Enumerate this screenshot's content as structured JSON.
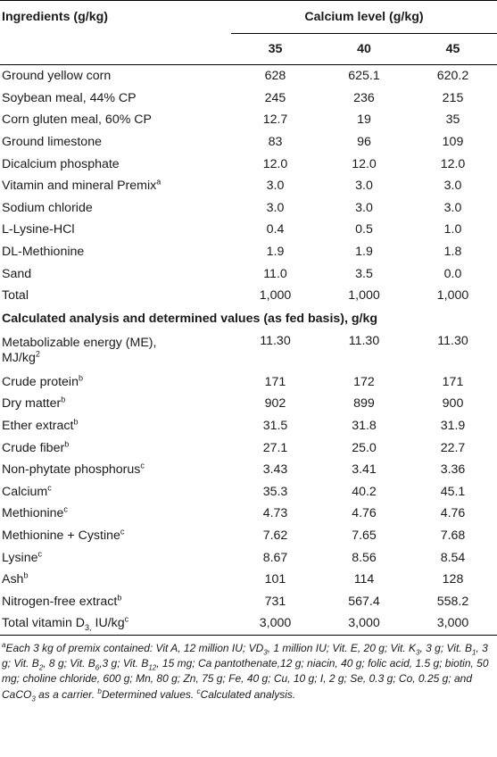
{
  "header": {
    "ingredients_label": "Ingredients (g/kg)",
    "calcium_label": "Calcium level (g/kg)",
    "levels": [
      "35",
      "40",
      "45"
    ]
  },
  "ingredients": [
    {
      "name": "Ground yellow corn",
      "sup": "",
      "v": [
        "628",
        "625.1",
        "620.2"
      ]
    },
    {
      "name": "Soybean meal, 44% CP",
      "sup": "",
      "v": [
        "245",
        "236",
        "215"
      ]
    },
    {
      "name": "Corn gluten meal, 60% CP",
      "sup": "",
      "v": [
        "12.7",
        "19",
        "35"
      ]
    },
    {
      "name": "Ground limestone",
      "sup": "",
      "v": [
        "83",
        "96",
        "109"
      ]
    },
    {
      "name": "Dicalcium phosphate",
      "sup": "",
      "v": [
        "12.0",
        "12.0",
        "12.0"
      ]
    },
    {
      "name": "Vitamin and mineral Premix",
      "sup": "a",
      "v": [
        "3.0",
        "3.0",
        "3.0"
      ]
    },
    {
      "name": "Sodium chloride",
      "sup": "",
      "v": [
        "3.0",
        "3.0",
        "3.0"
      ]
    },
    {
      "name": "L-Lysine-HCl",
      "sup": "",
      "v": [
        "0.4",
        "0.5",
        "1.0"
      ]
    },
    {
      "name": "DL-Methionine",
      "sup": "",
      "v": [
        "1.9",
        "1.9",
        "1.8"
      ]
    },
    {
      "name": "Sand",
      "sup": "",
      "v": [
        "11.0",
        "3.5",
        "0.0"
      ]
    },
    {
      "name": "Total",
      "sup": "",
      "v": [
        "1,000",
        "1,000",
        "1,000"
      ]
    }
  ],
  "analysis_title": "Calculated analysis and determined values (as fed basis), g/kg",
  "me_row": {
    "line1": "Metabolizable energy (ME),",
    "line2": "MJ/kg",
    "sup": "2",
    "v": [
      "11.30",
      "11.30",
      "11.30"
    ]
  },
  "analysis": [
    {
      "name": "Crude protein",
      "sup": "b",
      "v": [
        "171",
        "172",
        "171"
      ]
    },
    {
      "name": "Dry matter",
      "sup": "b",
      "v": [
        "902",
        "899",
        "900"
      ]
    },
    {
      "name": "Ether extract",
      "sup": "b",
      "v": [
        "31.5",
        "31.8",
        "31.9"
      ]
    },
    {
      "name": "Crude fiber",
      "sup": "b",
      "v": [
        "27.1",
        "25.0",
        "22.7"
      ]
    },
    {
      "name": "Non-phytate phosphorus",
      "sup": "c",
      "v": [
        "3.43",
        "3.41",
        "3.36"
      ]
    },
    {
      "name": "Calcium",
      "sup": "c",
      "v": [
        "35.3",
        "40.2",
        "45.1"
      ]
    },
    {
      "name": "Methionine",
      "sup": "c",
      "v": [
        "4.73",
        "4.76",
        "4.76"
      ]
    },
    {
      "name": "Methionine + Cystine",
      "sup": "c",
      "v": [
        "7.62",
        "7.65",
        "7.68"
      ]
    },
    {
      "name": "Lysine",
      "sup": "c",
      "v": [
        "8.67",
        "8.56",
        "8.54"
      ]
    },
    {
      "name": "Ash",
      "sup": "b",
      "v": [
        "101",
        "114",
        "128"
      ]
    },
    {
      "name": "Nitrogen-free extract",
      "sup": "b",
      "v": [
        "731",
        "567.4",
        "558.2"
      ]
    },
    {
      "name": "Total vitamin D",
      "sub": "3,",
      "unit": " IU/kg",
      "sup": "c",
      "v": [
        "3,000",
        "3,000",
        "3,000"
      ]
    }
  ],
  "footnote": {
    "a_mark": "a",
    "a_text_1": "Each 3 kg of premix contained: Vit A, 12 million IU; VD",
    "a_sub_1": "3",
    "a_text_2": ", 1 million IU; Vit. E, 20 g; Vit. K",
    "a_sub_2": "3",
    "a_text_3": ", 3 g; Vit. B",
    "a_sub_3": "1",
    "a_text_4": ", 3 g; Vit. B",
    "a_sub_4": "2",
    "a_text_5": ", 8 g; Vit. B",
    "a_sub_5": "6",
    "a_text_6": ",3 g; Vit. B",
    "a_sub_6": "12",
    "a_text_7": ", 15 mg; Ca pantothenate,12 g; niacin, 40 g; folic acid, 1.5 g; biotin, 50 mg; choline chloride, 600 g; Mn, 80 g; Zn, 75 g; Fe, 40 g; Cu, 10 g; I, 2 g; Se, 0.3 g; Co, 0.25 g; and CaCO",
    "a_sub_7": "3",
    "a_text_8": " as a carrier. ",
    "b_mark": "b",
    "b_text": "Determined values. ",
    "c_mark": "c",
    "c_text": "Calculated analysis."
  }
}
